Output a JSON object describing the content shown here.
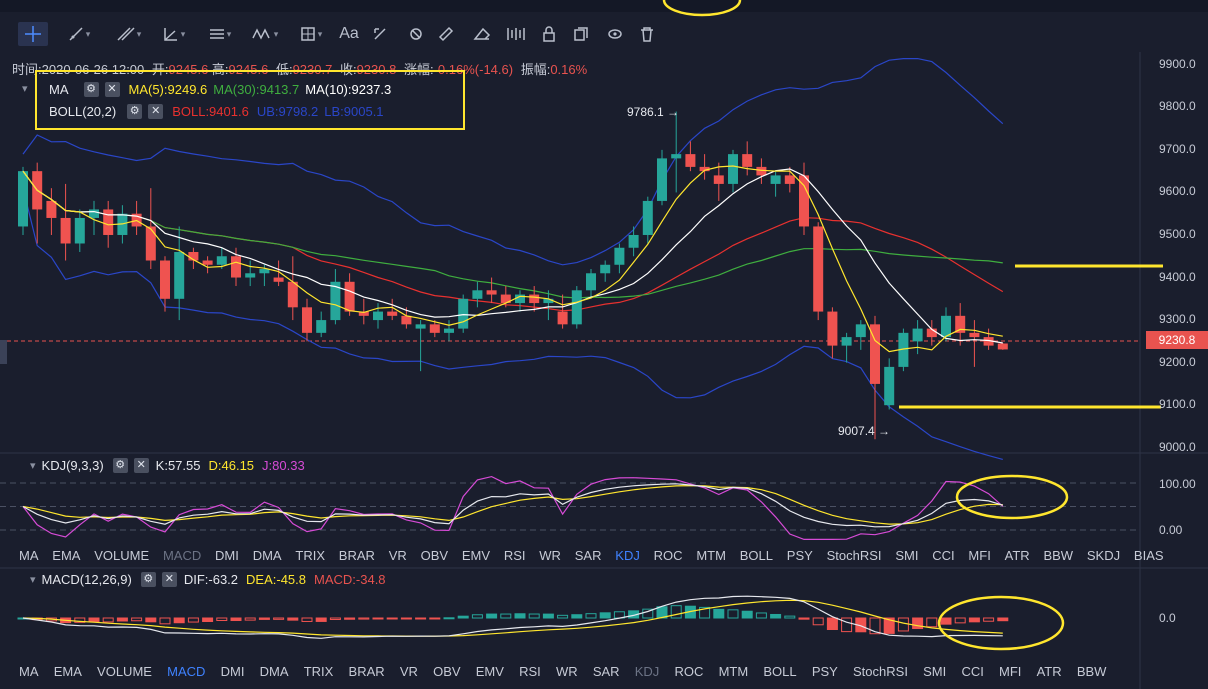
{
  "toolbar": {
    "icons": [
      "crosshair-icon",
      "trendline-icon",
      "multiline-icon",
      "angle-icon",
      "fib-icon",
      "wave-icon",
      "measure-box-icon",
      "text-icon",
      "brush-icon",
      "magnet-icon",
      "ruler-icon",
      "eraser-tool-icon",
      "pattern-icon",
      "lock-icon",
      "layers-icon",
      "trash-icon"
    ],
    "text_tool": "Aa"
  },
  "info": {
    "time_label": "时间:",
    "time": "2020-06-26 12:00",
    "open_label": "开:",
    "open": "9245.6",
    "high_label": "高:",
    "high": "9245.6",
    "low_label": "低:",
    "low": "9230.7",
    "close_label": "收:",
    "close": "9230.8",
    "change_label": "涨幅:",
    "change": "-0.16%(-14.6)",
    "amp_label": "振幅:",
    "amp": "0.16%"
  },
  "legend": {
    "ma_title": "MA",
    "ma5": "MA(5):9249.6",
    "ma30": "MA(30):9413.7",
    "ma10": "MA(10):9237.3",
    "boll_title": "BOLL(20,2)",
    "boll": "BOLL:9401.6",
    "ub": "UB:9798.2",
    "lb": "LB:9005.1",
    "collapse_icon": "▾"
  },
  "kdj": {
    "title": "KDJ(9,3,3)",
    "k": "K:57.55",
    "d": "D:46.15",
    "j": "J:80.33"
  },
  "macd": {
    "title": "MACD(12,26,9)",
    "dif": "DIF:-63.2",
    "dea": "DEA:-45.8",
    "macd": "MACD:-34.8"
  },
  "indicator_tabs_1": [
    "MA",
    "EMA",
    "VOLUME",
    "MACD",
    "DMI",
    "DMA",
    "TRIX",
    "BRAR",
    "VR",
    "OBV",
    "EMV",
    "RSI",
    "WR",
    "SAR",
    "KDJ",
    "ROC",
    "MTM",
    "BOLL",
    "PSY",
    "StochRSI",
    "SMI",
    "CCI",
    "MFI",
    "ATR",
    "BBW",
    "SKDJ",
    "BIAS"
  ],
  "indicator_tabs_2": [
    "MA",
    "EMA",
    "VOLUME",
    "MACD",
    "DMI",
    "DMA",
    "TRIX",
    "BRAR",
    "VR",
    "OBV",
    "EMV",
    "RSI",
    "WR",
    "SAR",
    "KDJ",
    "ROC",
    "MTM",
    "BOLL",
    "PSY",
    "StochRSI",
    "SMI",
    "CCI",
    "MFI",
    "ATR",
    "BBW"
  ],
  "price_axis": [
    "9900.0",
    "9800.0",
    "9700.0",
    "9600.0",
    "9500.0",
    "9400.0",
    "9300.0",
    "9200.0",
    "9100.0",
    "9000.0"
  ],
  "current_price": "9230.8",
  "kdj_axis": [
    "100.00",
    "0.00"
  ],
  "macd_axis": [
    "0.0"
  ],
  "annotations": {
    "high": "9786.1",
    "low": "9007.4"
  },
  "colors": {
    "up": "#26a69a",
    "down": "#ef5350",
    "ma5": "#ffe62e",
    "ma10": "#ffffff",
    "ma30": "#3fae3f",
    "boll": "#e8312f",
    "band": "#2a46c8",
    "highlight": "#ffe62e"
  },
  "chart_data": {
    "type": "candlestick",
    "ylim": [
      8990,
      9930
    ],
    "candles": [
      [
        9520,
        9660,
        9500,
        9650
      ],
      [
        9650,
        9670,
        9480,
        9560
      ],
      [
        9580,
        9610,
        9500,
        9540
      ],
      [
        9540,
        9620,
        9440,
        9480
      ],
      [
        9480,
        9560,
        9460,
        9540
      ],
      [
        9540,
        9580,
        9500,
        9560
      ],
      [
        9560,
        9580,
        9470,
        9500
      ],
      [
        9500,
        9570,
        9480,
        9550
      ],
      [
        9550,
        9580,
        9500,
        9520
      ],
      [
        9520,
        9610,
        9420,
        9440
      ],
      [
        9440,
        9450,
        9320,
        9350
      ],
      [
        9350,
        9520,
        9300,
        9460
      ],
      [
        9460,
        9470,
        9420,
        9440
      ],
      [
        9440,
        9450,
        9410,
        9430
      ],
      [
        9430,
        9470,
        9420,
        9450
      ],
      [
        9450,
        9470,
        9380,
        9400
      ],
      [
        9400,
        9440,
        9380,
        9410
      ],
      [
        9410,
        9430,
        9380,
        9420
      ],
      [
        9400,
        9440,
        9380,
        9390
      ],
      [
        9390,
        9450,
        9300,
        9330
      ],
      [
        9330,
        9350,
        9250,
        9270
      ],
      [
        9270,
        9320,
        9260,
        9300
      ],
      [
        9300,
        9420,
        9290,
        9390
      ],
      [
        9390,
        9410,
        9310,
        9320
      ],
      [
        9320,
        9350,
        9290,
        9310
      ],
      [
        9300,
        9340,
        9280,
        9320
      ],
      [
        9320,
        9350,
        9300,
        9310
      ],
      [
        9310,
        9330,
        9280,
        9290
      ],
      [
        9280,
        9300,
        9180,
        9290
      ],
      [
        9290,
        9300,
        9260,
        9270
      ],
      [
        9270,
        9300,
        9250,
        9280
      ],
      [
        9280,
        9360,
        9270,
        9350
      ],
      [
        9350,
        9390,
        9330,
        9370
      ],
      [
        9370,
        9400,
        9340,
        9360
      ],
      [
        9360,
        9380,
        9330,
        9340
      ],
      [
        9340,
        9370,
        9320,
        9360
      ],
      [
        9360,
        9380,
        9320,
        9340
      ],
      [
        9340,
        9370,
        9300,
        9350
      ],
      [
        9320,
        9360,
        9280,
        9290
      ],
      [
        9290,
        9380,
        9280,
        9370
      ],
      [
        9370,
        9420,
        9350,
        9410
      ],
      [
        9410,
        9440,
        9390,
        9430
      ],
      [
        9430,
        9480,
        9410,
        9470
      ],
      [
        9470,
        9520,
        9450,
        9500
      ],
      [
        9500,
        9590,
        9480,
        9580
      ],
      [
        9580,
        9700,
        9570,
        9680
      ],
      [
        9680,
        9790,
        9600,
        9690
      ],
      [
        9690,
        9720,
        9650,
        9660
      ],
      [
        9660,
        9690,
        9630,
        9650
      ],
      [
        9640,
        9670,
        9580,
        9620
      ],
      [
        9620,
        9700,
        9600,
        9690
      ],
      [
        9690,
        9720,
        9640,
        9660
      ],
      [
        9660,
        9680,
        9620,
        9640
      ],
      [
        9620,
        9650,
        9590,
        9640
      ],
      [
        9640,
        9660,
        9600,
        9620
      ],
      [
        9640,
        9670,
        9500,
        9520
      ],
      [
        9520,
        9530,
        9300,
        9320
      ],
      [
        9320,
        9330,
        9210,
        9240
      ],
      [
        9240,
        9270,
        9200,
        9260
      ],
      [
        9260,
        9300,
        9230,
        9290
      ],
      [
        9290,
        9310,
        9020,
        9150
      ],
      [
        9100,
        9210,
        9090,
        9190
      ],
      [
        9190,
        9280,
        9180,
        9270
      ],
      [
        9250,
        9300,
        9220,
        9280
      ],
      [
        9280,
        9300,
        9240,
        9260
      ],
      [
        9260,
        9330,
        9250,
        9310
      ],
      [
        9310,
        9340,
        9240,
        9270
      ],
      [
        9270,
        9300,
        9190,
        9260
      ],
      [
        9260,
        9280,
        9230,
        9240
      ],
      [
        9245,
        9246,
        9230,
        9231
      ]
    ]
  }
}
